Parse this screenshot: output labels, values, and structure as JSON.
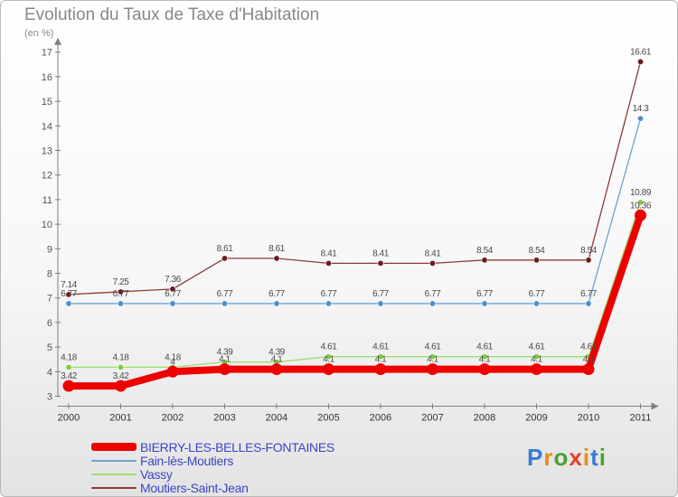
{
  "title": "Evolution du Taux de Taxe d'Habitation",
  "subtitle": "(en %)",
  "logo": {
    "text": "Proxiti"
  },
  "chart_data": {
    "type": "line",
    "title": "Evolution du Taux de Taxe d'Habitation",
    "ylabel": "(en %)",
    "xlabel": "",
    "ylim": [
      3,
      17
    ],
    "yticks": [
      3,
      4,
      5,
      6,
      7,
      8,
      9,
      10,
      11,
      12,
      13,
      14,
      15,
      16,
      17
    ],
    "categories": [
      "2000",
      "2001",
      "2002",
      "2003",
      "2004",
      "2005",
      "2006",
      "2007",
      "2008",
      "2009",
      "2010",
      "2011"
    ],
    "grid": false,
    "legend_position": "bottom-left",
    "series": [
      {
        "name": "BIERRY-LES-BELLES-FONTAINES",
        "color": "#ee0000",
        "values": [
          3.42,
          3.42,
          4,
          4.1,
          4.1,
          4.1,
          4.1,
          4.1,
          4.1,
          4.1,
          4.1,
          10.36
        ],
        "labels": [
          "3.42",
          "3.42",
          "4",
          "4.1",
          "4.1",
          "4.1",
          "4.1",
          "4.1",
          "4.1",
          "4.1",
          "4.1",
          "10.36"
        ]
      },
      {
        "name": "Fain-lès-Moutiers",
        "color": "#6da2cf",
        "marker_color": "#4a90d0",
        "values": [
          6.77,
          6.77,
          6.77,
          6.77,
          6.77,
          6.77,
          6.77,
          6.77,
          6.77,
          6.77,
          6.77,
          14.3
        ],
        "labels": [
          "6.77",
          "6.77",
          "6.77",
          "6.77",
          "6.77",
          "6.77",
          "6.77",
          "6.77",
          "6.77",
          "6.77",
          "6.77",
          "14.3"
        ]
      },
      {
        "name": "Vassy",
        "color": "#9ee06e",
        "marker_color": "#7ccc3c",
        "values": [
          4.18,
          4.18,
          4.18,
          4.39,
          4.39,
          4.61,
          4.61,
          4.61,
          4.61,
          4.61,
          4.61,
          10.89
        ],
        "labels": [
          "4.18",
          "4.18",
          "4.18",
          "4.39",
          "4.39",
          "4.61",
          "4.61",
          "4.61",
          "4.61",
          "4.61",
          "4.61",
          "10.89"
        ]
      },
      {
        "name": "Moutiers-Saint-Jean",
        "color": "#8a3a3a",
        "marker_color": "#6b1d1d",
        "values": [
          7.14,
          7.25,
          7.36,
          8.61,
          8.61,
          8.41,
          8.41,
          8.41,
          8.54,
          8.54,
          8.54,
          16.61
        ],
        "labels": [
          "7.14",
          "7.25",
          "7.36",
          "8.61",
          "8.61",
          "8.41",
          "8.41",
          "8.41",
          "8.54",
          "8.54",
          "8.54",
          "16.61"
        ]
      }
    ]
  }
}
